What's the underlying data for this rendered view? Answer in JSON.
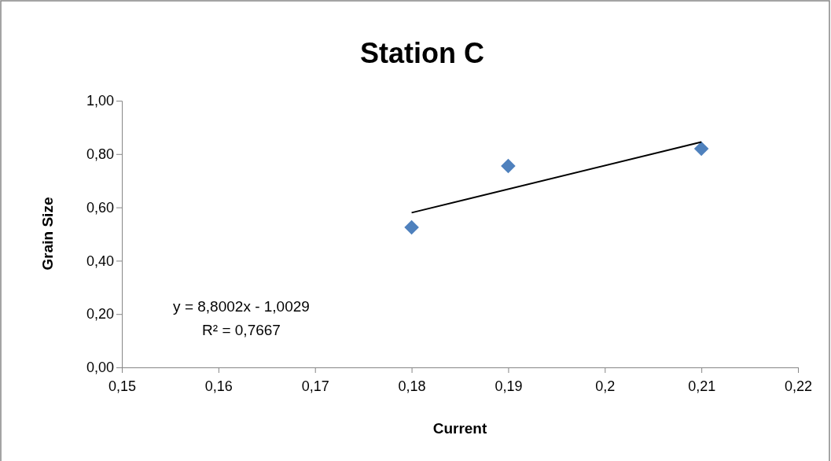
{
  "chart_data": {
    "type": "scatter",
    "title": "Station C",
    "xlabel": "Current",
    "ylabel": "Grain Size",
    "marker": "diamond",
    "series": [
      {
        "color": "#4f81bd",
        "x": [
          0.18,
          0.19,
          0.21
        ],
        "values": [
          0.525,
          0.755,
          0.82
        ]
      },
      {
        "type": "line",
        "color": "#000000",
        "marker": "none",
        "x": [
          0.18,
          0.21
        ],
        "values": [
          0.58,
          0.845
        ]
      }
    ],
    "xlim": [
      0.15,
      0.22
    ],
    "xticks": [
      {
        "value": 0.15,
        "label": "0,15"
      },
      {
        "value": 0.16,
        "label": "0,16"
      },
      {
        "value": 0.17,
        "label": "0,17"
      },
      {
        "value": 0.18,
        "label": "0,18"
      },
      {
        "value": 0.19,
        "label": "0,19"
      },
      {
        "value": 0.2,
        "label": "0,2"
      },
      {
        "value": 0.21,
        "label": "0,21"
      },
      {
        "value": 0.22,
        "label": "0,22"
      }
    ],
    "ylim": [
      0,
      1
    ],
    "yticks": [
      {
        "value": 0,
        "label": "0,00"
      },
      {
        "value": 0.2,
        "label": "0,20"
      },
      {
        "value": 0.4,
        "label": "0,40"
      },
      {
        "value": 0.6,
        "label": "0,60"
      },
      {
        "value": 0.8,
        "label": "0,80"
      },
      {
        "value": 1,
        "label": "1,00"
      }
    ],
    "annotations": [
      "y = 8,8002x - 1,0029",
      "R² = 0,7667"
    ]
  }
}
